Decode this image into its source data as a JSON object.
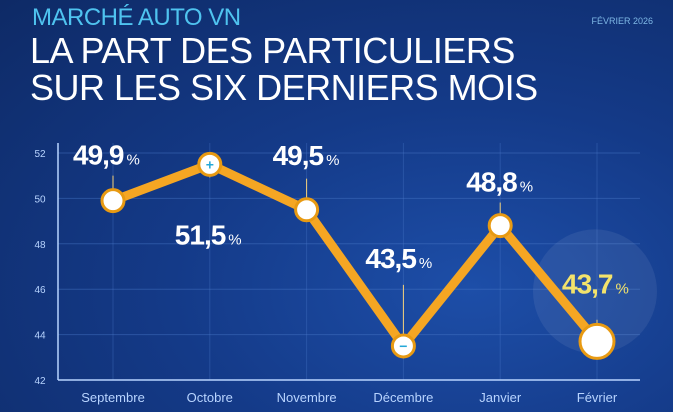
{
  "header": {
    "kicker": "MARCHÉ AUTO VN",
    "date": "FÉVRIER 2026",
    "title_line1": "LA PART DES PARTICULIERS",
    "title_line2": "SUR LES SIX DERNIERS MOIS"
  },
  "colors": {
    "line": "#f5a623",
    "highlight": "#f3e36b",
    "text": "#ffffff",
    "axis": "#b8d4ff"
  },
  "chart_data": {
    "type": "line",
    "categories": [
      "Septembre",
      "Octobre",
      "Novembre",
      "Décembre",
      "Janvier",
      "Février"
    ],
    "values": [
      49.9,
      51.5,
      49.5,
      43.5,
      48.8,
      43.7
    ],
    "labels": [
      "49,9",
      "51,5",
      "49,5",
      "43,5",
      "48,8",
      "43,7"
    ],
    "unit": "%",
    "markers": [
      "",
      "+",
      "",
      "−",
      "",
      ""
    ],
    "ylim": [
      42,
      52
    ],
    "yticks": [
      "42",
      "44",
      "46",
      "48",
      "50",
      "52"
    ],
    "grid": true,
    "highlight_index": 5
  }
}
